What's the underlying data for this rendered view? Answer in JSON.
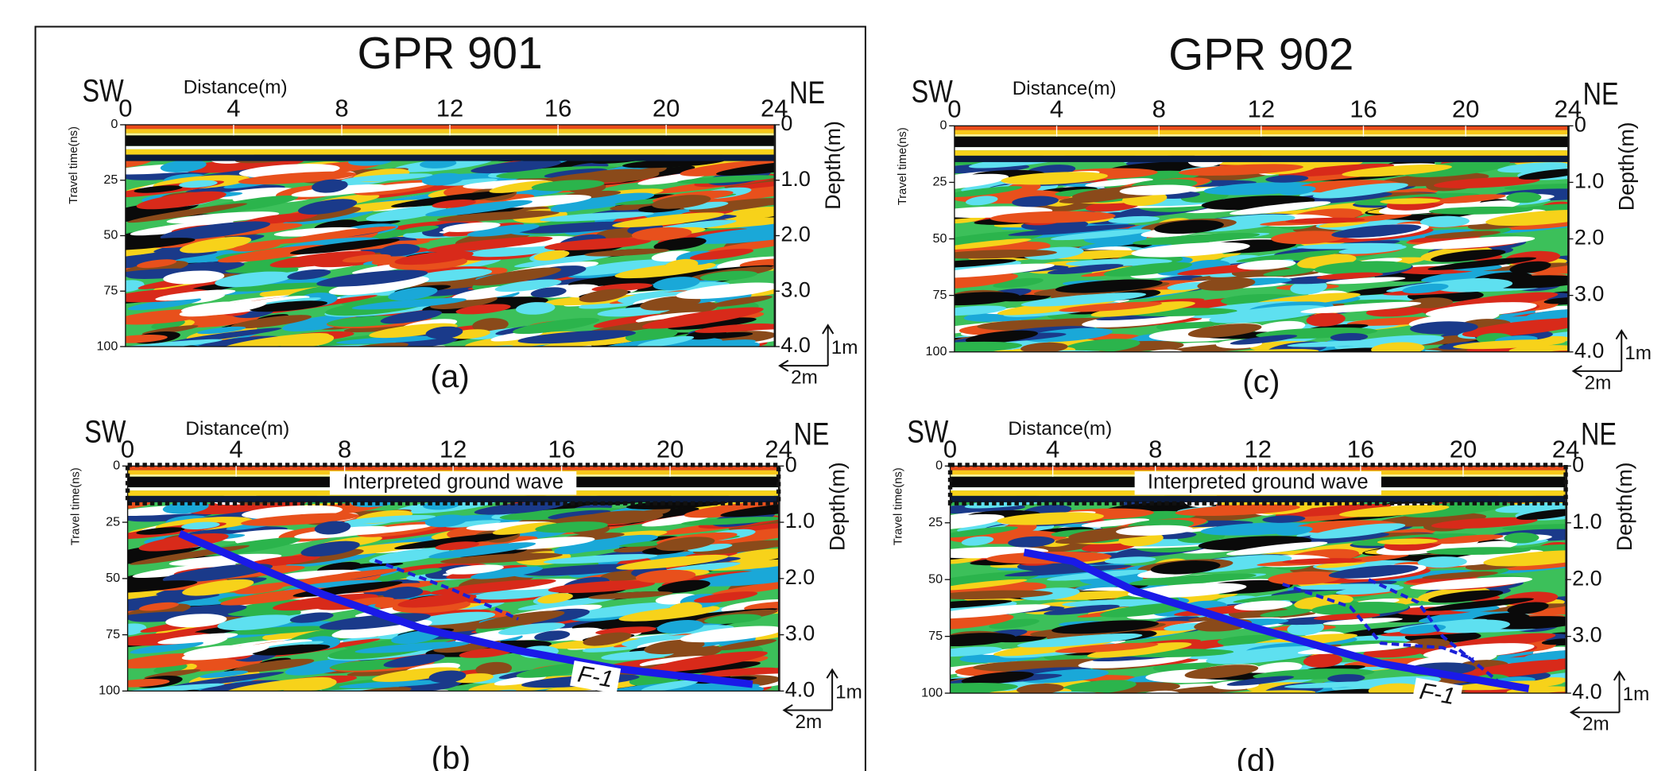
{
  "panels": [
    {
      "title": "GPR 901",
      "label": "(a)",
      "left_direction": "SW",
      "right_direction": "NE",
      "x_axis_label": "Distance(m)",
      "x_ticks": [
        "0",
        "4",
        "8",
        "12",
        "16",
        "20",
        "24"
      ],
      "left_axis_label": "Travel time(ns)",
      "left_ticks": [
        "0",
        "25",
        "50",
        "75",
        "100"
      ],
      "right_axis_label": "Depth(m)",
      "right_ticks": [
        "0",
        "1.0",
        "2.0",
        "3.0",
        "4.0"
      ],
      "scale_vertical": "1m",
      "scale_horizontal": "2m"
    },
    {
      "label": "(b)",
      "left_direction": "SW",
      "right_direction": "NE",
      "x_axis_label": "Distance(m)",
      "x_ticks": [
        "0",
        "4",
        "8",
        "12",
        "16",
        "20",
        "24"
      ],
      "left_axis_label": "Travel time(ns)",
      "left_ticks": [
        "0",
        "25",
        "50",
        "75",
        "100"
      ],
      "right_axis_label": "Depth(m)",
      "right_ticks": [
        "0",
        "1.0",
        "2.0",
        "3.0",
        "4.0"
      ],
      "scale_vertical": "1m",
      "scale_horizontal": "2m",
      "annotation": "Interpreted ground wave",
      "fault_label": "F-1"
    },
    {
      "title": "GPR 902",
      "label": "(c)",
      "left_direction": "SW",
      "right_direction": "NE",
      "x_axis_label": "Distance(m)",
      "x_ticks": [
        "0",
        "4",
        "8",
        "12",
        "16",
        "20",
        "24"
      ],
      "left_axis_label": "Travel time(ns)",
      "left_ticks": [
        "0",
        "25",
        "50",
        "75",
        "100"
      ],
      "right_axis_label": "Depth(m)",
      "right_ticks": [
        "0",
        "1.0",
        "2.0",
        "3.0",
        "4.0"
      ],
      "scale_vertical": "1m",
      "scale_horizontal": "2m"
    },
    {
      "label": "(d)",
      "left_direction": "SW",
      "right_direction": "NE",
      "x_axis_label": "Distance(m)",
      "x_ticks": [
        "0",
        "4",
        "8",
        "12",
        "16",
        "20",
        "24"
      ],
      "left_axis_label": "Travel time(ns)",
      "left_ticks": [
        "0",
        "25",
        "50",
        "75",
        "100"
      ],
      "right_axis_label": "Depth(m)",
      "right_ticks": [
        "0",
        "1.0",
        "2.0",
        "3.0",
        "4.0"
      ],
      "scale_vertical": "1m",
      "scale_horizontal": "2m",
      "annotation": "Interpreted ground wave",
      "fault_label": "F-1"
    }
  ]
}
